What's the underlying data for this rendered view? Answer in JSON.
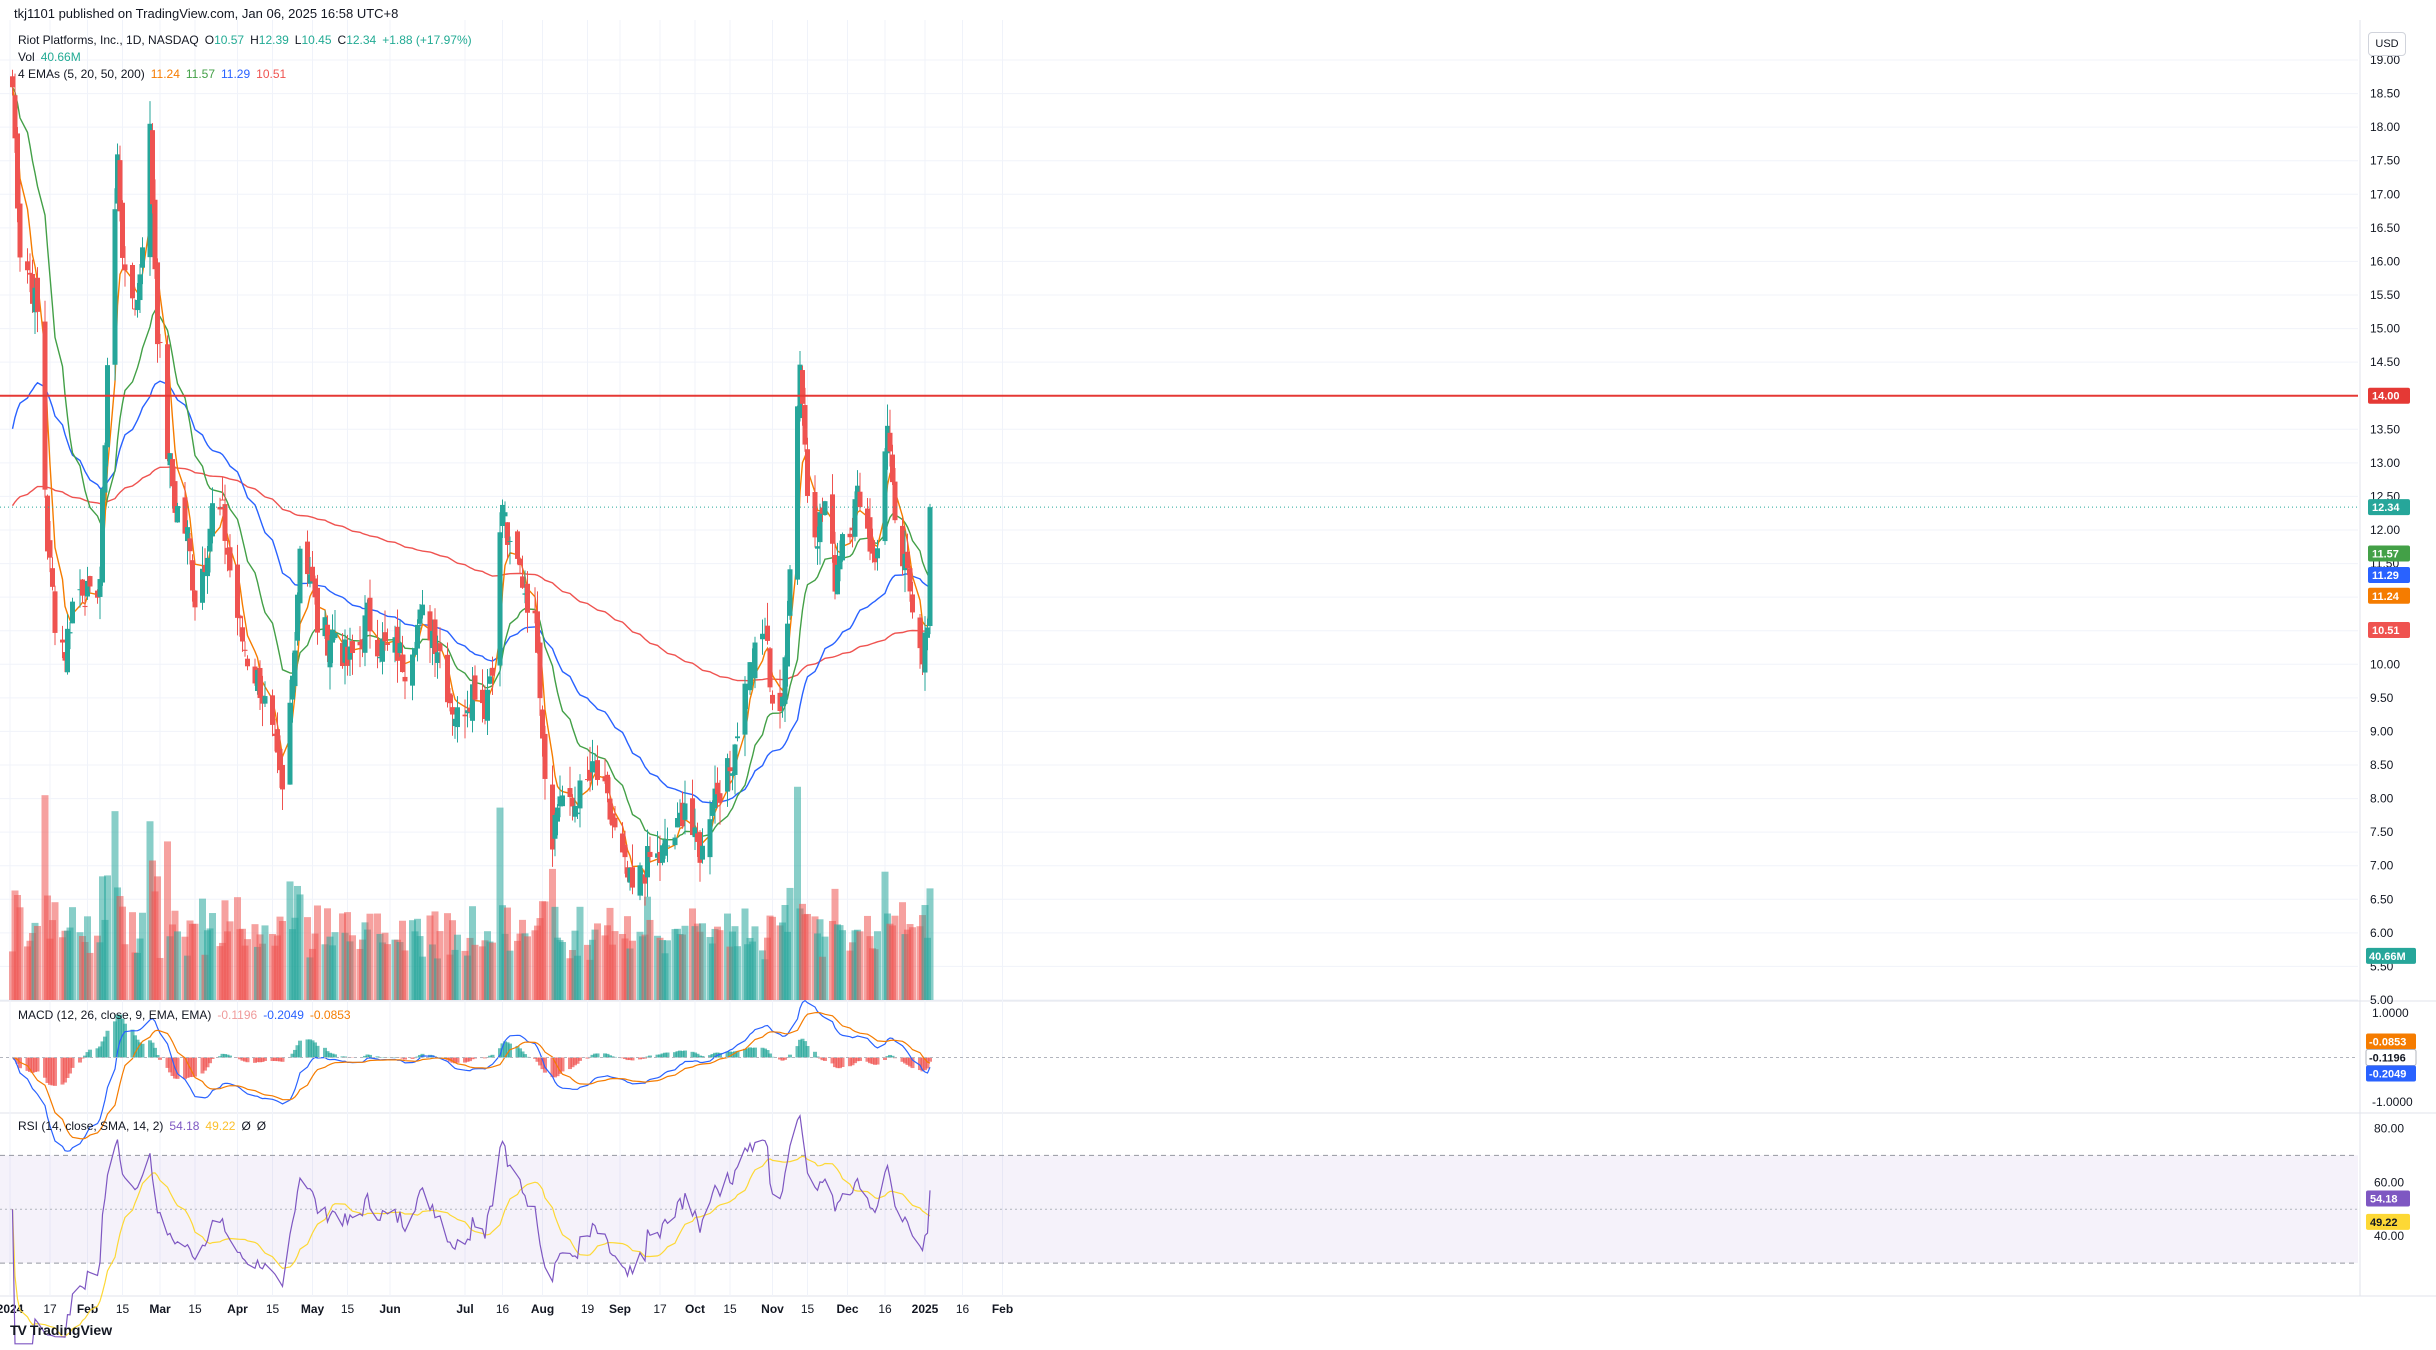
{
  "publish_line": "tkj1101 published on TradingView.com, Jan 06, 2025 16:58 UTC+8",
  "symbol": {
    "name": "Riot Platforms, Inc., 1D, NASDAQ",
    "o_label": "O",
    "o": "10.57",
    "h_label": "H",
    "h": "12.39",
    "l_label": "L",
    "l": "10.45",
    "c_label": "C",
    "c": "12.34",
    "change": "+1.88 (+17.97%)"
  },
  "vol_legend": {
    "label": "Vol",
    "value": "40.66M"
  },
  "ema_legend": {
    "label": "4 EMAs (5, 20, 50, 200)",
    "v5": "11.24",
    "v20": "11.57",
    "v50": "11.29",
    "v200": "10.51"
  },
  "macd_legend": {
    "label": "MACD (12, 26, close, 9, EMA, EMA)",
    "hist": "-0.1196",
    "macd": "-0.2049",
    "signal": "-0.0853"
  },
  "rsi_legend": {
    "label": "RSI (14, close, SMA, 14, 2)",
    "rsi": "54.18",
    "sma": "49.22",
    "a": "Ø",
    "b": "Ø"
  },
  "currency": "USD",
  "branding": "TradingView",
  "colors": {
    "up": "#26a69a",
    "down": "#ef5350",
    "ema5": "#f57c00",
    "ema20": "#43a047",
    "ema50": "#2962ff",
    "ema200": "#ef5350",
    "rsi": "#7e57c2",
    "rsi_sma": "#fdd835",
    "resistance": "#e53935"
  },
  "chart_data": {
    "type": "candlestick",
    "title": "Riot Platforms, Inc., 1D, NASDAQ",
    "x_ticks": [
      "2024",
      "17",
      "Feb",
      "15",
      "Mar",
      "15",
      "Apr",
      "15",
      "May",
      "15",
      "Jun",
      "Jul",
      "16",
      "Aug",
      "19",
      "Sep",
      "17",
      "Oct",
      "15",
      "Nov",
      "15",
      "Dec",
      "16",
      "2025",
      "16",
      "Feb"
    ],
    "price_axis": {
      "ylim": [
        5.0,
        19.0
      ],
      "ticks": [
        "19.00",
        "18.50",
        "18.00",
        "17.50",
        "17.00",
        "16.50",
        "16.00",
        "15.50",
        "15.00",
        "14.50",
        "14.00",
        "13.50",
        "13.00",
        "12.50",
        "12.00",
        "11.50",
        "11.00",
        "10.50",
        "10.00",
        "9.50",
        "9.00",
        "8.50",
        "8.00",
        "7.50",
        "7.00",
        "6.50",
        "6.00",
        "5.50",
        "5.00"
      ]
    },
    "price_labels": {
      "resistance": "14.00",
      "last": "12.34",
      "ema20": "11.57",
      "ema50": "11.29",
      "ema5": "11.24",
      "ema200": "10.51",
      "volume": "40.66M"
    },
    "resistance_level": 14.0,
    "anchors": [
      [
        "2024-01-02",
        18.6
      ],
      [
        "2024-01-05",
        16.2
      ],
      [
        "2024-01-09",
        15.8
      ],
      [
        "2024-01-12",
        15.2
      ],
      [
        "2024-01-16",
        11.8
      ],
      [
        "2024-01-19",
        10.7
      ],
      [
        "2024-01-23",
        10.2
      ],
      [
        "2024-01-26",
        10.9
      ],
      [
        "2024-01-30",
        11.2
      ],
      [
        "2024-02-02",
        10.9
      ],
      [
        "2024-02-06",
        11.3
      ],
      [
        "2024-02-09",
        14.5
      ],
      [
        "2024-02-13",
        17.5
      ],
      [
        "2024-02-16",
        15.6
      ],
      [
        "2024-02-21",
        15.4
      ],
      [
        "2024-02-26",
        17.9
      ],
      [
        "2024-02-29",
        15.0
      ],
      [
        "2024-03-04",
        13.2
      ],
      [
        "2024-03-07",
        12.4
      ],
      [
        "2024-03-12",
        11.9
      ],
      [
        "2024-03-15",
        11.0
      ],
      [
        "2024-03-19",
        11.6
      ],
      [
        "2024-03-22",
        12.3
      ],
      [
        "2024-03-26",
        12.2
      ],
      [
        "2024-03-29",
        11.4
      ],
      [
        "2024-04-02",
        10.5
      ],
      [
        "2024-04-05",
        10.1
      ],
      [
        "2024-04-10",
        9.7
      ],
      [
        "2024-04-15",
        8.9
      ],
      [
        "2024-04-19",
        8.0
      ],
      [
        "2024-04-23",
        9.8
      ],
      [
        "2024-04-26",
        11.8
      ],
      [
        "2024-04-30",
        11.4
      ],
      [
        "2024-05-03",
        10.6
      ],
      [
        "2024-05-07",
        10.4
      ],
      [
        "2024-05-10",
        10.5
      ],
      [
        "2024-05-15",
        10.0
      ],
      [
        "2024-05-20",
        10.3
      ],
      [
        "2024-05-23",
        10.7
      ],
      [
        "2024-05-28",
        10.3
      ],
      [
        "2024-05-31",
        10.2
      ],
      [
        "2024-06-04",
        10.2
      ],
      [
        "2024-06-07",
        10.0
      ],
      [
        "2024-06-11",
        10.5
      ],
      [
        "2024-06-14",
        10.7
      ],
      [
        "2024-06-18",
        10.5
      ],
      [
        "2024-06-21",
        10.2
      ],
      [
        "2024-06-25",
        9.5
      ],
      [
        "2024-06-28",
        9.2
      ],
      [
        "2024-07-02",
        9.5
      ],
      [
        "2024-07-05",
        9.7
      ],
      [
        "2024-07-09",
        9.4
      ],
      [
        "2024-07-12",
        10.1
      ],
      [
        "2024-07-16",
        12.4
      ],
      [
        "2024-07-19",
        11.6
      ],
      [
        "2024-07-23",
        11.4
      ],
      [
        "2024-07-26",
        11.0
      ],
      [
        "2024-07-30",
        10.4
      ],
      [
        "2024-08-02",
        8.4
      ],
      [
        "2024-08-05",
        7.5
      ],
      [
        "2024-08-08",
        8.1
      ],
      [
        "2024-08-12",
        7.8
      ],
      [
        "2024-08-15",
        8.0
      ],
      [
        "2024-08-19",
        8.2
      ],
      [
        "2024-08-22",
        8.4
      ],
      [
        "2024-08-26",
        8.0
      ],
      [
        "2024-08-29",
        7.6
      ],
      [
        "2024-09-03",
        6.9
      ],
      [
        "2024-09-06",
        6.6
      ],
      [
        "2024-09-10",
        6.9
      ],
      [
        "2024-09-13",
        7.1
      ],
      [
        "2024-09-17",
        7.1
      ],
      [
        "2024-09-20",
        7.3
      ],
      [
        "2024-09-24",
        7.5
      ],
      [
        "2024-09-27",
        8.0
      ],
      [
        "2024-10-01",
        7.3
      ],
      [
        "2024-10-04",
        7.2
      ],
      [
        "2024-10-08",
        8.1
      ],
      [
        "2024-10-11",
        8.2
      ],
      [
        "2024-10-15",
        8.4
      ],
      [
        "2024-10-18",
        9.1
      ],
      [
        "2024-10-22",
        9.8
      ],
      [
        "2024-10-25",
        10.1
      ],
      [
        "2024-10-29",
        10.5
      ],
      [
        "2024-11-01",
        9.5
      ],
      [
        "2024-11-05",
        9.3
      ],
      [
        "2024-11-08",
        11.6
      ],
      [
        "2024-11-12",
        14.6
      ],
      [
        "2024-11-15",
        12.6
      ],
      [
        "2024-11-19",
        12.0
      ],
      [
        "2024-11-22",
        12.4
      ],
      [
        "2024-11-26",
        11.3
      ],
      [
        "2024-11-29",
        12.0
      ],
      [
        "2024-12-03",
        12.2
      ],
      [
        "2024-12-06",
        12.6
      ],
      [
        "2024-12-10",
        11.8
      ],
      [
        "2024-12-13",
        11.6
      ],
      [
        "2024-12-17",
        13.7
      ],
      [
        "2024-12-20",
        11.9
      ],
      [
        "2024-12-24",
        11.4
      ],
      [
        "2024-12-27",
        11.0
      ],
      [
        "2024-12-31",
        10.2
      ],
      [
        "2025-01-02",
        10.5
      ],
      [
        "2025-01-03",
        12.34
      ]
    ],
    "volume_ylim": [
      0,
      90
    ],
    "macd_axis": {
      "ylim": [
        -1.0,
        1.0
      ],
      "ticks": [
        "1.0000",
        "-1.0000"
      ],
      "labels": [
        "-0.0853",
        "-0.1196",
        "-0.2049"
      ]
    },
    "rsi_axis": {
      "ylim": [
        20,
        85
      ],
      "ticks": [
        "80.00",
        "60.00",
        "40.00"
      ],
      "labels": [
        "54.18",
        "49.22"
      ],
      "bands": [
        70,
        30
      ],
      "midline": 50
    },
    "last_bar": {
      "open": 10.57,
      "high": 12.39,
      "low": 10.45,
      "close": 12.34,
      "volume": "40.66M"
    }
  }
}
